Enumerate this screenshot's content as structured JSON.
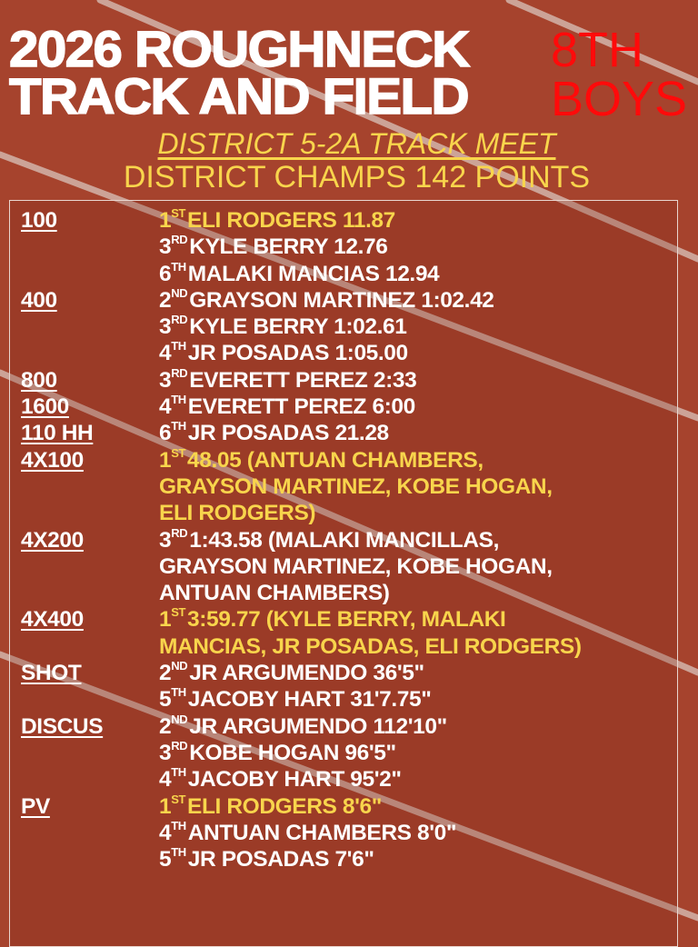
{
  "colors": {
    "background": "#a6432d",
    "title": "#ffffff",
    "grade": "#ff0a0a",
    "highlight": "#f8d54c",
    "text": "#ffffff"
  },
  "header": {
    "title_line1": "2026 ROUGHNECK",
    "title_line2": "TRACK AND FIELD",
    "grade_line1": "8TH",
    "grade_line2": "BOYS"
  },
  "meet": {
    "name": "DISTRICT 5-2A TRACK MEET",
    "result": "DISTRICT CHAMPS 142 POINTS"
  },
  "events": [
    {
      "name": "100",
      "results": [
        {
          "place": "1",
          "sup": "ST",
          "lines": [
            "ELI RODGERS 11.87"
          ],
          "highlight": true
        },
        {
          "place": "3",
          "sup": "RD",
          "lines": [
            "KYLE BERRY 12.76"
          ]
        },
        {
          "place": "6",
          "sup": "TH",
          "lines": [
            "MALAKI MANCIAS 12.94"
          ]
        }
      ]
    },
    {
      "name": "400",
      "results": [
        {
          "place": "2",
          "sup": "ND",
          "lines": [
            "GRAYSON MARTINEZ 1:02.42"
          ]
        },
        {
          "place": "3",
          "sup": "RD",
          "lines": [
            "KYLE BERRY 1:02.61"
          ]
        },
        {
          "place": "4",
          "sup": "TH",
          "lines": [
            "JR POSADAS 1:05.00"
          ]
        }
      ]
    },
    {
      "name": "800",
      "results": [
        {
          "place": "3",
          "sup": "RD",
          "lines": [
            "EVERETT PEREZ 2:33"
          ]
        }
      ]
    },
    {
      "name": "1600",
      "results": [
        {
          "place": "4",
          "sup": "TH",
          "lines": [
            "EVERETT PEREZ 6:00"
          ]
        }
      ]
    },
    {
      "name": "110 HH",
      "results": [
        {
          "place": "6",
          "sup": "TH",
          "lines": [
            "JR POSADAS 21.28"
          ]
        }
      ]
    },
    {
      "name": "4X100",
      "results": [
        {
          "place": "1",
          "sup": "ST",
          "lines": [
            "48.05 (ANTUAN CHAMBERS,",
            "GRAYSON MARTINEZ, KOBE HOGAN,",
            "ELI RODGERS)"
          ],
          "highlight": true
        }
      ]
    },
    {
      "name": "4X200",
      "results": [
        {
          "place": "3",
          "sup": "RD",
          "lines": [
            "1:43.58 (MALAKI MANCILLAS,",
            "GRAYSON MARTINEZ, KOBE HOGAN,",
            "ANTUAN CHAMBERS)"
          ]
        }
      ]
    },
    {
      "name": "4X400",
      "results": [
        {
          "place": "1",
          "sup": "ST",
          "lines": [
            "3:59.77 (KYLE BERRY, MALAKI",
            "MANCIAS, JR POSADAS, ELI RODGERS)"
          ],
          "highlight": true
        }
      ]
    },
    {
      "name": "SHOT",
      "results": [
        {
          "place": "2",
          "sup": "ND",
          "lines": [
            "JR ARGUMENDO 36'5\""
          ]
        },
        {
          "place": "5",
          "sup": "TH",
          "lines": [
            "JACOBY HART 31'7.75\""
          ]
        }
      ]
    },
    {
      "name": "DISCUS",
      "results": [
        {
          "place": "2",
          "sup": "ND",
          "lines": [
            "JR ARGUMENDO 112'10\""
          ]
        },
        {
          "place": "3",
          "sup": "RD",
          "lines": [
            "KOBE HOGAN 96'5\""
          ]
        },
        {
          "place": "4",
          "sup": "TH",
          "lines": [
            "JACOBY HART 95'2\""
          ]
        }
      ]
    },
    {
      "name": "PV",
      "results": [
        {
          "place": "1",
          "sup": "ST",
          "lines": [
            "ELI RODGERS 8'6\""
          ],
          "highlight": true
        },
        {
          "place": "4",
          "sup": "TH",
          "lines": [
            "ANTUAN CHAMBERS 8'0\""
          ]
        },
        {
          "place": "5",
          "sup": "TH",
          "lines": [
            "JR POSADAS 7'6\""
          ]
        }
      ]
    }
  ]
}
